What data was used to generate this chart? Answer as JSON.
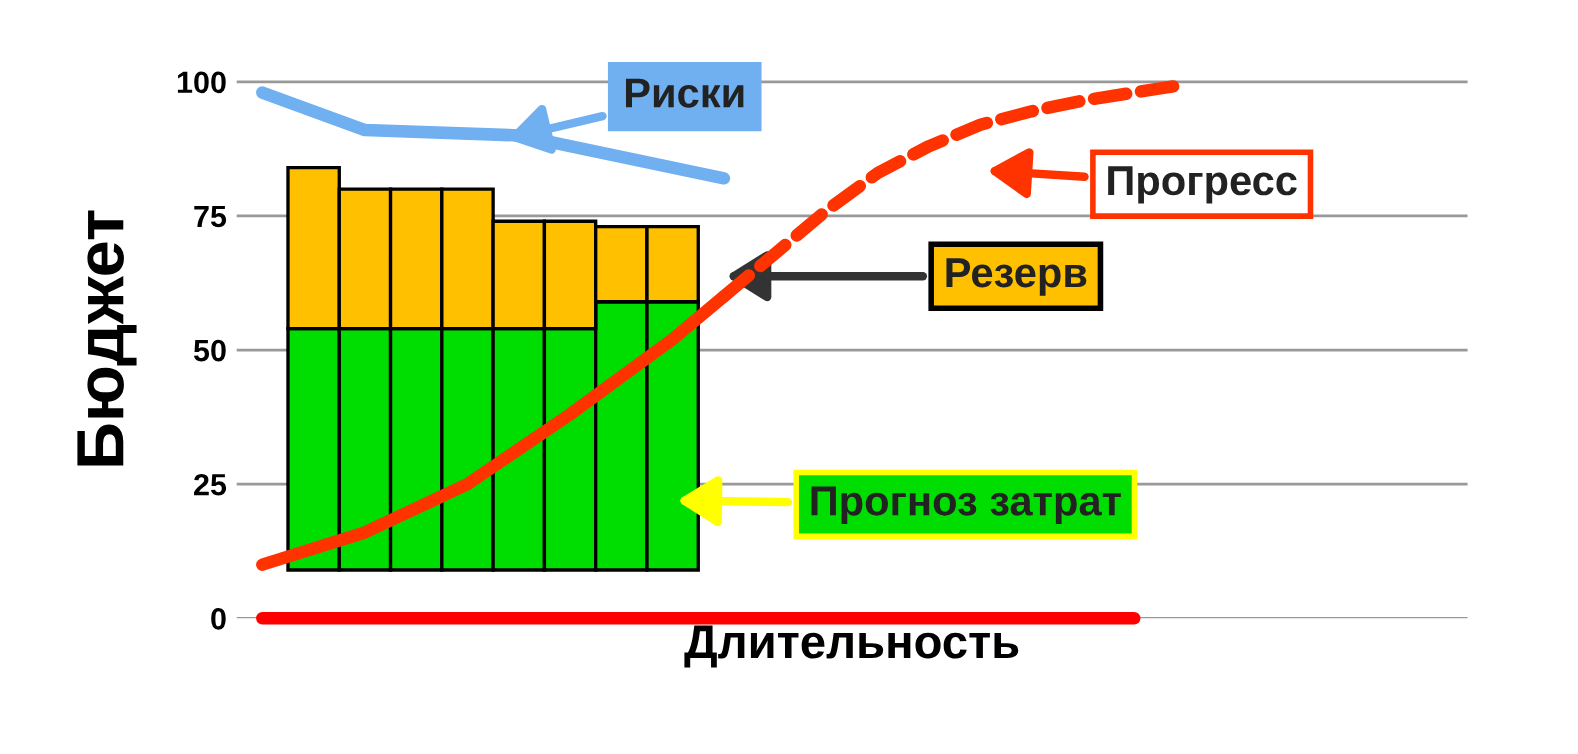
{
  "chart_data": {
    "type": "bar",
    "xlabel": "Длительность",
    "ylabel": "Бюджет",
    "categories": [
      null,
      null,
      null,
      null,
      null,
      null,
      null,
      null,
      null,
      null,
      null,
      null,
      null,
      null,
      null,
      null,
      null,
      null,
      null,
      null,
      null,
      null,
      null,
      null
    ],
    "series": [
      {
        "color": "#00dd00",
        "base": [
          null,
          9,
          9,
          9,
          9,
          9,
          9,
          9,
          9,
          null,
          null,
          null,
          null,
          null,
          null,
          null,
          null,
          null,
          null,
          null,
          null,
          null,
          null,
          null
        ],
        "values": [
          null,
          45,
          45,
          45,
          45,
          45,
          45,
          50,
          50,
          null,
          null,
          null,
          null,
          null,
          null,
          null,
          null,
          null,
          null,
          null,
          null,
          null,
          null,
          null
        ]
      },
      {
        "color": "#ffc000",
        "base": [
          null,
          54,
          54,
          54,
          54,
          54,
          54,
          59,
          59,
          null,
          null,
          null,
          null,
          null,
          null,
          null,
          null,
          null,
          null,
          null,
          null,
          null,
          null,
          null
        ],
        "values": [
          null,
          30,
          26,
          26,
          26,
          20,
          20,
          14,
          14,
          null,
          null,
          null,
          null,
          null,
          null,
          null,
          null,
          null,
          null,
          null,
          null,
          null,
          null,
          null
        ]
      },
      {
        "type": "line",
        "color": "#70b0f0",
        "values": [
          98,
          null,
          91,
          null,
          null,
          90,
          null,
          null,
          null,
          82,
          null,
          null,
          null,
          null,
          null,
          null,
          null,
          null,
          null,
          null,
          null,
          null,
          null,
          null
        ]
      },
      {
        "type": "line",
        "color": "#ff3300",
        "values": [
          10,
          null,
          16,
          null,
          25,
          null,
          38,
          null,
          52,
          60,
          null,
          null,
          null,
          null,
          null,
          null,
          null,
          null,
          null,
          null,
          null,
          null,
          null,
          null
        ]
      },
      {
        "type": "line",
        "color": "#ff3300",
        "line_style": "dashed",
        "values": [
          null,
          null,
          null,
          null,
          null,
          null,
          null,
          null,
          null,
          60,
          68,
          76,
          83,
          88,
          92,
          94.5,
          96.5,
          98,
          99.5,
          null,
          null,
          null,
          null,
          null
        ]
      },
      {
        "type": "line",
        "color": "#ff0000",
        "values": [
          0,
          null,
          null,
          null,
          null,
          null,
          null,
          null,
          null,
          null,
          null,
          null,
          null,
          null,
          null,
          null,
          null,
          0,
          null,
          null,
          null,
          null,
          null,
          null
        ]
      }
    ],
    "annotations": [
      "Риски",
      "Прогресс",
      "Резерв",
      "Прогноз затрат"
    ],
    "ylim": [
      0,
      104
    ],
    "yticks": [
      0,
      25,
      50,
      75,
      100
    ],
    "grid": "y",
    "tick_labels": "y",
    "marker": "none"
  }
}
